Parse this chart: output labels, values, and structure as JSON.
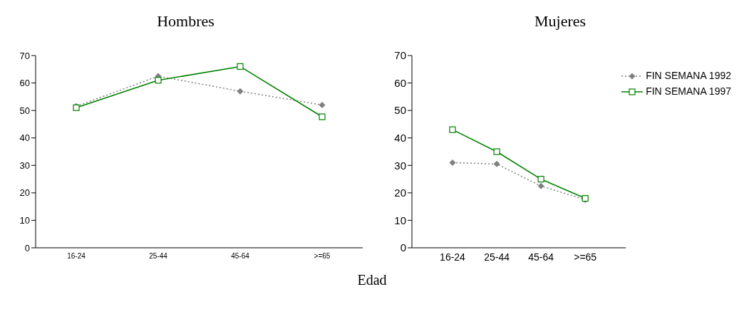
{
  "chart_data": [
    {
      "type": "line",
      "title": "Hombres",
      "categories": [
        "16-24",
        "25-44",
        "45-64",
        ">=65"
      ],
      "ylim": [
        0,
        70
      ],
      "yticks": [
        0,
        10,
        20,
        30,
        40,
        50,
        60,
        70
      ],
      "grid": false,
      "legend": false,
      "series": [
        {
          "color": "#808080",
          "marker": "diamond",
          "line_style": "dotted",
          "values": [
            51.5,
            62.5,
            57,
            52
          ]
        },
        {
          "color": "#008000",
          "marker": "square",
          "line_style": "solid",
          "values": [
            51,
            61,
            66,
            47.7
          ]
        }
      ]
    },
    {
      "type": "line",
      "title": "Mujeres",
      "xlabel": "Edad",
      "categories": [
        "16-24",
        "25-44",
        "45-64",
        ">=65"
      ],
      "ylim": [
        0,
        70
      ],
      "yticks": [
        0,
        10,
        20,
        30,
        40,
        50,
        60,
        70
      ],
      "grid": false,
      "legend": "top right",
      "series": [
        {
          "name": "FIN SEMANA 1992",
          "color": "#808080",
          "marker": "diamond",
          "line_style": "dotted",
          "values": [
            31,
            30.5,
            22.5,
            17.5
          ]
        },
        {
          "name": "FIN SEMANA 1997",
          "color": "#008000",
          "marker": "square",
          "line_style": "solid",
          "values": [
            43,
            35,
            25,
            18
          ]
        }
      ]
    }
  ]
}
